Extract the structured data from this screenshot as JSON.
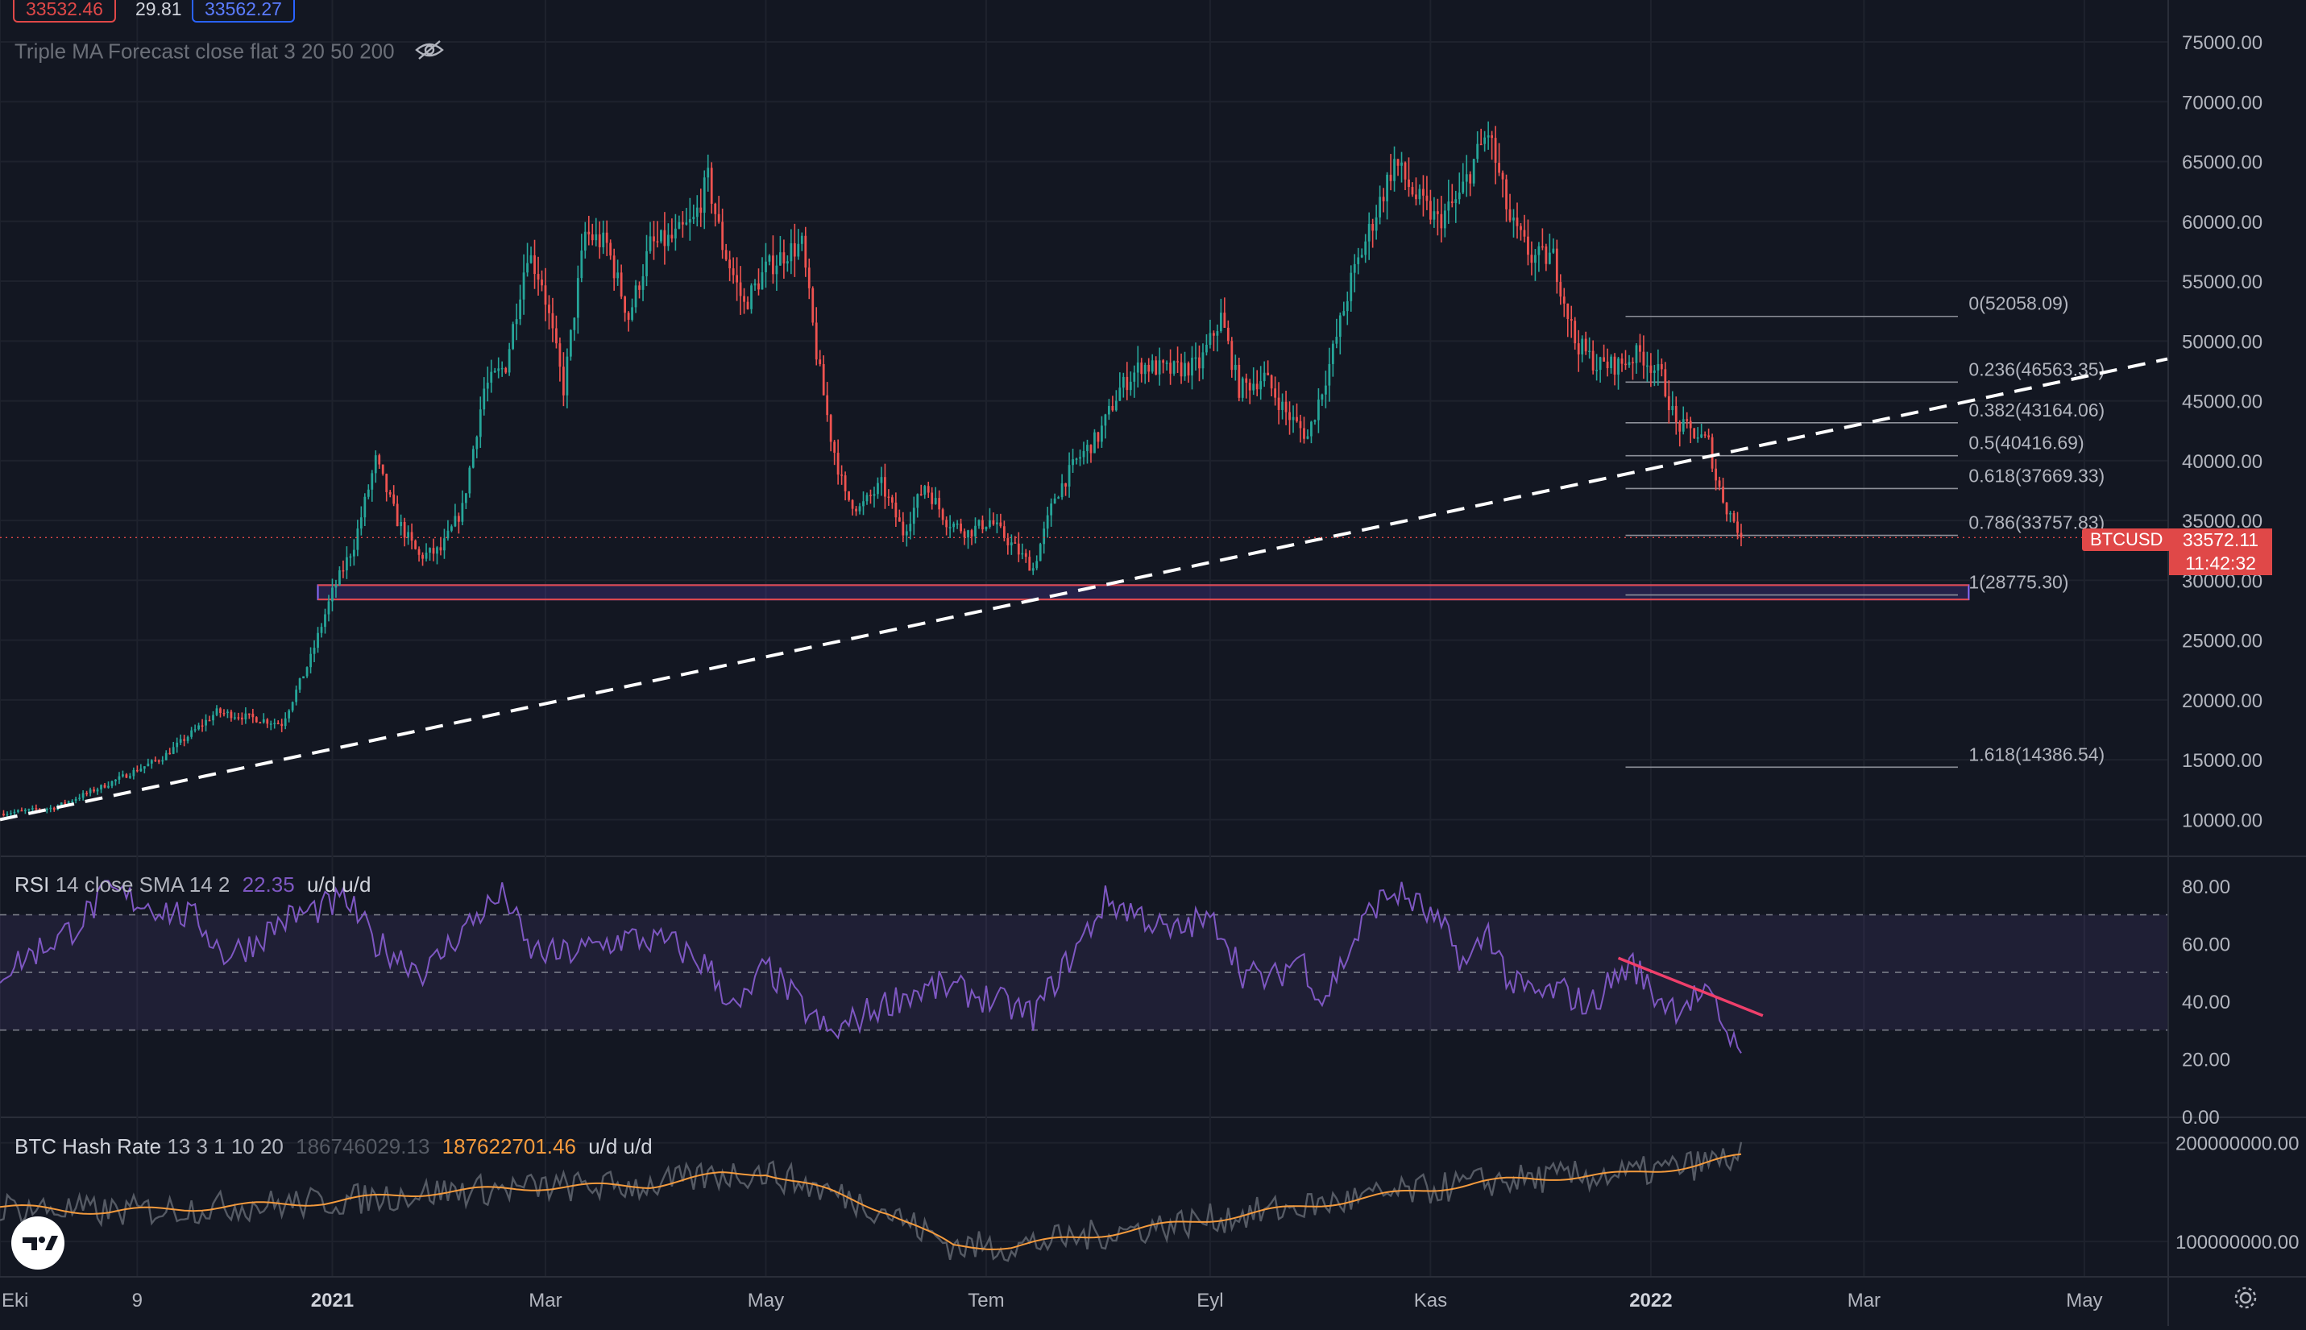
{
  "header": {
    "price_left": "33532.46",
    "change": "29.81",
    "price_right": "33562.27",
    "indicator": "Triple MA Forecast close flat 3 20 50 200"
  },
  "rsi_legend": {
    "name": "RSI",
    "params": "14 close SMA 14 2",
    "value": "22.35",
    "ud": "u/d u/d"
  },
  "hash_legend": {
    "name": "BTC Hash Rate",
    "params": "13 3 1 10 20",
    "value1": "186746029.13",
    "value2": "187622701.46",
    "ud": "u/d u/d"
  },
  "price_label": {
    "symbol": "BTCUSD",
    "value": "33572.11",
    "countdown": "11:42:32"
  },
  "colors": {
    "up": "#26a69a",
    "down": "#ef5350",
    "rsi": "#7e57c2",
    "hash_fast": "#555a64",
    "hash_slow": "#f59b3d",
    "level": "#e04848",
    "bg": "#131722"
  },
  "chart_data": [
    {
      "type": "candlestick",
      "title": "BTCUSD daily",
      "y_ticks": [
        "75000.00",
        "70000.00",
        "65000.00",
        "60000.00",
        "55000.00",
        "50000.00",
        "45000.00",
        "40000.00",
        "35000.00",
        "30000.00",
        "25000.00",
        "20000.00",
        "15000.00",
        "10000.00"
      ],
      "y_tick_values": [
        75000,
        70000,
        65000,
        60000,
        55000,
        50000,
        45000,
        40000,
        35000,
        30000,
        25000,
        20000,
        15000,
        10000
      ],
      "ylim": [
        7000,
        78500
      ],
      "x_ticks": [
        "Eki",
        "9",
        "2021",
        "Mar",
        "May",
        "Tem",
        "Eyl",
        "Kas",
        "2022",
        "Mar",
        "May"
      ],
      "x_tick_days": [
        0,
        38,
        92,
        151,
        212,
        273,
        335,
        396,
        457,
        516,
        577
      ],
      "xlim": [
        0,
        600
      ],
      "series_close_anchors": [
        [
          0,
          10500
        ],
        [
          15,
          11000
        ],
        [
          30,
          13000
        ],
        [
          45,
          15200
        ],
        [
          60,
          19000
        ],
        [
          70,
          18500
        ],
        [
          78,
          18000
        ],
        [
          86,
          23500
        ],
        [
          92,
          29000
        ],
        [
          98,
          33000
        ],
        [
          104,
          40000
        ],
        [
          110,
          35000
        ],
        [
          116,
          32000
        ],
        [
          122,
          32500
        ],
        [
          128,
          36000
        ],
        [
          134,
          46000
        ],
        [
          140,
          48000
        ],
        [
          146,
          57500
        ],
        [
          150,
          55000
        ],
        [
          156,
          46000
        ],
        [
          162,
          59000
        ],
        [
          168,
          58000
        ],
        [
          174,
          52000
        ],
        [
          180,
          58000
        ],
        [
          186,
          58500
        ],
        [
          192,
          60000
        ],
        [
          196,
          63500
        ],
        [
          200,
          58000
        ],
        [
          206,
          53000
        ],
        [
          212,
          56000
        ],
        [
          218,
          57500
        ],
        [
          222,
          58000
        ],
        [
          226,
          49000
        ],
        [
          230,
          42000
        ],
        [
          234,
          37000
        ],
        [
          238,
          36000
        ],
        [
          244,
          38000
        ],
        [
          250,
          34000
        ],
        [
          256,
          38000
        ],
        [
          262,
          35000
        ],
        [
          268,
          34000
        ],
        [
          274,
          35000
        ],
        [
          280,
          33000
        ],
        [
          286,
          31000
        ],
        [
          292,
          37000
        ],
        [
          298,
          40000
        ],
        [
          304,
          42000
        ],
        [
          310,
          46000
        ],
        [
          316,
          48000
        ],
        [
          324,
          47500
        ],
        [
          332,
          48000
        ],
        [
          338,
          52000
        ],
        [
          343,
          46000
        ],
        [
          350,
          47000
        ],
        [
          356,
          44000
        ],
        [
          362,
          42000
        ],
        [
          368,
          48000
        ],
        [
          374,
          55000
        ],
        [
          380,
          60000
        ],
        [
          386,
          65000
        ],
        [
          392,
          62000
        ],
        [
          398,
          60000
        ],
        [
          404,
          62000
        ],
        [
          408,
          65000
        ],
        [
          412,
          67500
        ],
        [
          418,
          60000
        ],
        [
          424,
          57000
        ],
        [
          430,
          57000
        ],
        [
          436,
          50000
        ],
        [
          442,
          48000
        ],
        [
          448,
          48000
        ],
        [
          454,
          49000
        ],
        [
          460,
          47000
        ],
        [
          464,
          43000
        ],
        [
          468,
          42500
        ],
        [
          473,
          41500
        ],
        [
          475,
          38500
        ],
        [
          478,
          36000
        ],
        [
          480,
          35000
        ],
        [
          482,
          33757
        ]
      ],
      "horizontal_zone": [
        28400,
        29600
      ],
      "trendline": {
        "start": [
          0,
          10000
        ],
        "end": [
          600,
          48500
        ],
        "style": "dashed"
      },
      "fibonacci": [
        {
          "label": "0(52058.09)",
          "price": 52058.09
        },
        {
          "label": "0.236(46563.35)",
          "price": 46563.35
        },
        {
          "label": "0.382(43164.06)",
          "price": 43164.06
        },
        {
          "label": "0.5(40416.69)",
          "price": 40416.69
        },
        {
          "label": "0.618(37669.33)",
          "price": 37669.33
        },
        {
          "label": "0.786(33757.83)",
          "price": 33757.83
        },
        {
          "label": "1(28775.30)",
          "price": 28775.3
        },
        {
          "label": "1.618(14386.54)",
          "price": 14386.54
        }
      ],
      "last_price": 33572.11
    },
    {
      "type": "line",
      "title": "RSI 14 close SMA 14 2",
      "y_ticks": [
        "80.00",
        "60.00",
        "40.00",
        "20.00",
        "0.00"
      ],
      "y_tick_values": [
        80,
        60,
        40,
        20,
        0
      ],
      "ylim": [
        0,
        90
      ],
      "bands": [
        30,
        50,
        70
      ],
      "anchors": [
        [
          0,
          50
        ],
        [
          20,
          65
        ],
        [
          30,
          78
        ],
        [
          45,
          72
        ],
        [
          55,
          68
        ],
        [
          62,
          56
        ],
        [
          70,
          60
        ],
        [
          78,
          68
        ],
        [
          88,
          72
        ],
        [
          96,
          75
        ],
        [
          104,
          60
        ],
        [
          110,
          56
        ],
        [
          118,
          50
        ],
        [
          126,
          62
        ],
        [
          134,
          72
        ],
        [
          140,
          77
        ],
        [
          146,
          58
        ],
        [
          154,
          56
        ],
        [
          162,
          58
        ],
        [
          174,
          62
        ],
        [
          186,
          60
        ],
        [
          196,
          52
        ],
        [
          204,
          36
        ],
        [
          212,
          52
        ],
        [
          222,
          38
        ],
        [
          230,
          28
        ],
        [
          240,
          36
        ],
        [
          250,
          42
        ],
        [
          260,
          45
        ],
        [
          268,
          43
        ],
        [
          276,
          40
        ],
        [
          286,
          35
        ],
        [
          292,
          47
        ],
        [
          300,
          62
        ],
        [
          306,
          75
        ],
        [
          316,
          70
        ],
        [
          324,
          63
        ],
        [
          332,
          68
        ],
        [
          338,
          66
        ],
        [
          344,
          50
        ],
        [
          352,
          47
        ],
        [
          360,
          56
        ],
        [
          366,
          40
        ],
        [
          372,
          54
        ],
        [
          380,
          73
        ],
        [
          386,
          78
        ],
        [
          392,
          74
        ],
        [
          400,
          64
        ],
        [
          406,
          52
        ],
        [
          412,
          65
        ],
        [
          418,
          46
        ],
        [
          426,
          42
        ],
        [
          432,
          44
        ],
        [
          440,
          38
        ],
        [
          446,
          47
        ],
        [
          452,
          53
        ],
        [
          458,
          42
        ],
        [
          464,
          38
        ],
        [
          470,
          42
        ],
        [
          474,
          40
        ],
        [
          478,
          30
        ],
        [
          482,
          22
        ]
      ],
      "trendline": {
        "start": [
          448,
          55
        ],
        "end": [
          488,
          35
        ]
      }
    },
    {
      "type": "line",
      "title": "BTC Hash Rate 13 3 1 10 20",
      "y_ticks": [
        "200000000.00",
        "100000000.00"
      ],
      "y_tick_values": [
        200000000,
        100000000
      ],
      "ylim": [
        65000000,
        225000000
      ],
      "anchors": [
        [
          0,
          135000000
        ],
        [
          30,
          130000000
        ],
        [
          60,
          135000000
        ],
        [
          90,
          140000000
        ],
        [
          120,
          150000000
        ],
        [
          150,
          155000000
        ],
        [
          180,
          157000000
        ],
        [
          200,
          168000000
        ],
        [
          212,
          170000000
        ],
        [
          230,
          150000000
        ],
        [
          246,
          130000000
        ],
        [
          256,
          110000000
        ],
        [
          264,
          95000000
        ],
        [
          280,
          95000000
        ],
        [
          300,
          105000000
        ],
        [
          330,
          120000000
        ],
        [
          360,
          135000000
        ],
        [
          390,
          150000000
        ],
        [
          410,
          160000000
        ],
        [
          430,
          165000000
        ],
        [
          450,
          168000000
        ],
        [
          470,
          178000000
        ],
        [
          485,
          188000000
        ]
      ]
    }
  ]
}
